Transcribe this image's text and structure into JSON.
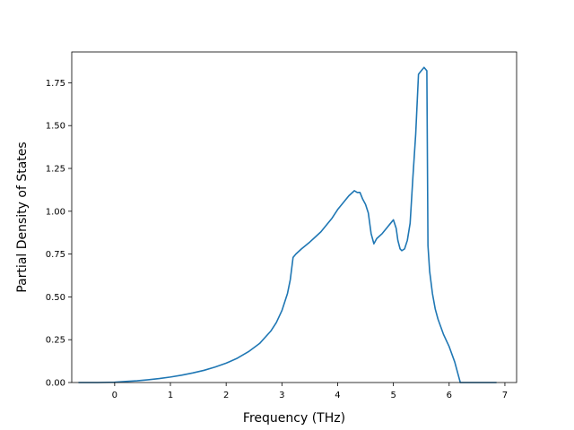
{
  "chart_data": {
    "type": "line",
    "title": "",
    "xlabel": "Frequency (THz)",
    "ylabel": "Partial Density of States",
    "xlim": [
      -0.77,
      7.21
    ],
    "ylim": [
      0.0,
      1.93
    ],
    "xticks": [
      0,
      1,
      2,
      3,
      4,
      5,
      6,
      7
    ],
    "yticks": [
      0.0,
      0.25,
      0.5,
      0.75,
      1.0,
      1.25,
      1.5,
      1.75
    ],
    "xtick_labels": [
      "0",
      "1",
      "2",
      "3",
      "4",
      "5",
      "6",
      "7"
    ],
    "ytick_labels": [
      "0.00",
      "0.25",
      "0.50",
      "0.75",
      "1.00",
      "1.25",
      "1.50",
      "1.75"
    ],
    "grid": false,
    "legend": "none",
    "line_color": "#1f77b4",
    "series": [
      {
        "x": [
          -0.65,
          -0.3,
          0.0,
          0.2,
          0.4,
          0.6,
          0.8,
          1.0,
          1.2,
          1.4,
          1.6,
          1.8,
          2.0,
          2.2,
          2.4,
          2.6,
          2.8,
          2.9,
          3.0,
          3.1,
          3.15,
          3.2,
          3.25,
          3.35,
          3.5,
          3.6,
          3.7,
          3.8,
          3.9,
          4.0,
          4.1,
          4.2,
          4.3,
          4.35,
          4.4,
          4.45,
          4.5,
          4.55,
          4.6,
          4.65,
          4.7,
          4.8,
          4.9,
          4.95,
          5.0,
          5.05,
          5.08,
          5.12,
          5.15,
          5.2,
          5.25,
          5.3,
          5.35,
          5.4,
          5.45,
          5.5,
          5.55,
          5.6,
          5.62,
          5.65,
          5.7,
          5.75,
          5.8,
          5.9,
          6.0,
          6.1,
          6.15,
          6.2,
          6.25,
          6.5,
          6.85
        ],
        "y": [
          0.0,
          0.0,
          0.002,
          0.006,
          0.01,
          0.016,
          0.023,
          0.032,
          0.043,
          0.056,
          0.071,
          0.09,
          0.113,
          0.142,
          0.18,
          0.228,
          0.3,
          0.35,
          0.42,
          0.52,
          0.6,
          0.73,
          0.75,
          0.78,
          0.82,
          0.85,
          0.88,
          0.92,
          0.96,
          1.01,
          1.05,
          1.09,
          1.12,
          1.11,
          1.11,
          1.07,
          1.04,
          0.99,
          0.87,
          0.81,
          0.84,
          0.87,
          0.91,
          0.93,
          0.95,
          0.9,
          0.83,
          0.78,
          0.77,
          0.78,
          0.83,
          0.93,
          1.2,
          1.45,
          1.8,
          1.82,
          1.84,
          1.82,
          0.8,
          0.65,
          0.52,
          0.43,
          0.37,
          0.28,
          0.21,
          0.12,
          0.06,
          0.0,
          0.0,
          0.0,
          0.0
        ]
      }
    ]
  }
}
